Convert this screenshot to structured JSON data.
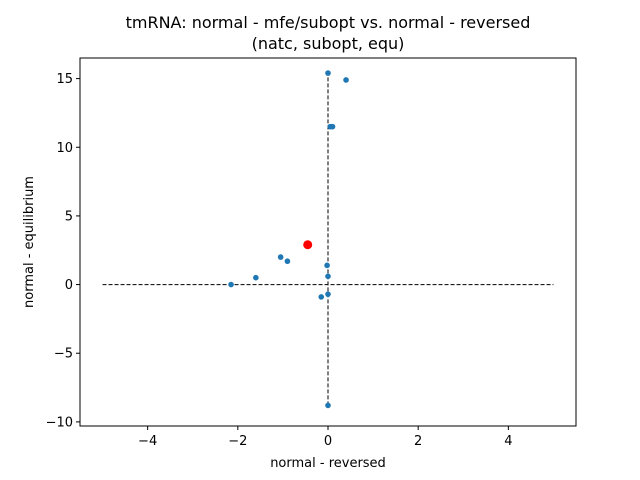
{
  "chart_data": {
    "type": "scatter",
    "title_line1": "tmRNA: normal - mfe/subopt vs. normal - reversed",
    "title_line2": "(natc, subopt, equ)",
    "xlabel": "normal - reversed",
    "ylabel": "normal - equilibrium",
    "xlim": [
      -5.5,
      5.5
    ],
    "ylim": [
      -10.3,
      16.5
    ],
    "xticks": [
      -4,
      -2,
      0,
      2,
      4
    ],
    "yticks": [
      -10,
      -5,
      0,
      5,
      10,
      15
    ],
    "xtick_labels": [
      "−4",
      "−2",
      "0",
      "2",
      "4"
    ],
    "ytick_labels": [
      "−10",
      "−5",
      "0",
      "5",
      "10",
      "15"
    ],
    "grid": false,
    "reference_lines": {
      "horizontal": {
        "y": 0,
        "x_from": -5,
        "x_to": 5
      },
      "vertical": {
        "x": 0,
        "y_from": -8.8,
        "y_to": 15.4
      }
    },
    "points": [
      {
        "x": 0.0,
        "y": 15.4
      },
      {
        "x": 0.4,
        "y": 14.9
      },
      {
        "x": 0.05,
        "y": 11.5
      },
      {
        "x": 0.1,
        "y": 11.5
      },
      {
        "x": -1.05,
        "y": 2.0
      },
      {
        "x": -0.9,
        "y": 1.7
      },
      {
        "x": -0.02,
        "y": 1.4
      },
      {
        "x": -1.6,
        "y": 0.5
      },
      {
        "x": 0.0,
        "y": 0.6
      },
      {
        "x": -2.15,
        "y": 0.0
      },
      {
        "x": 0.0,
        "y": -0.7
      },
      {
        "x": -0.15,
        "y": -0.9
      },
      {
        "x": 0.0,
        "y": -8.8
      }
    ],
    "highlight": {
      "x": -0.45,
      "y": 2.9
    },
    "colors": {
      "point": "#1f77b4",
      "highlight": "#ff0000",
      "reference_line": "#000000",
      "axes": "#000000"
    }
  }
}
